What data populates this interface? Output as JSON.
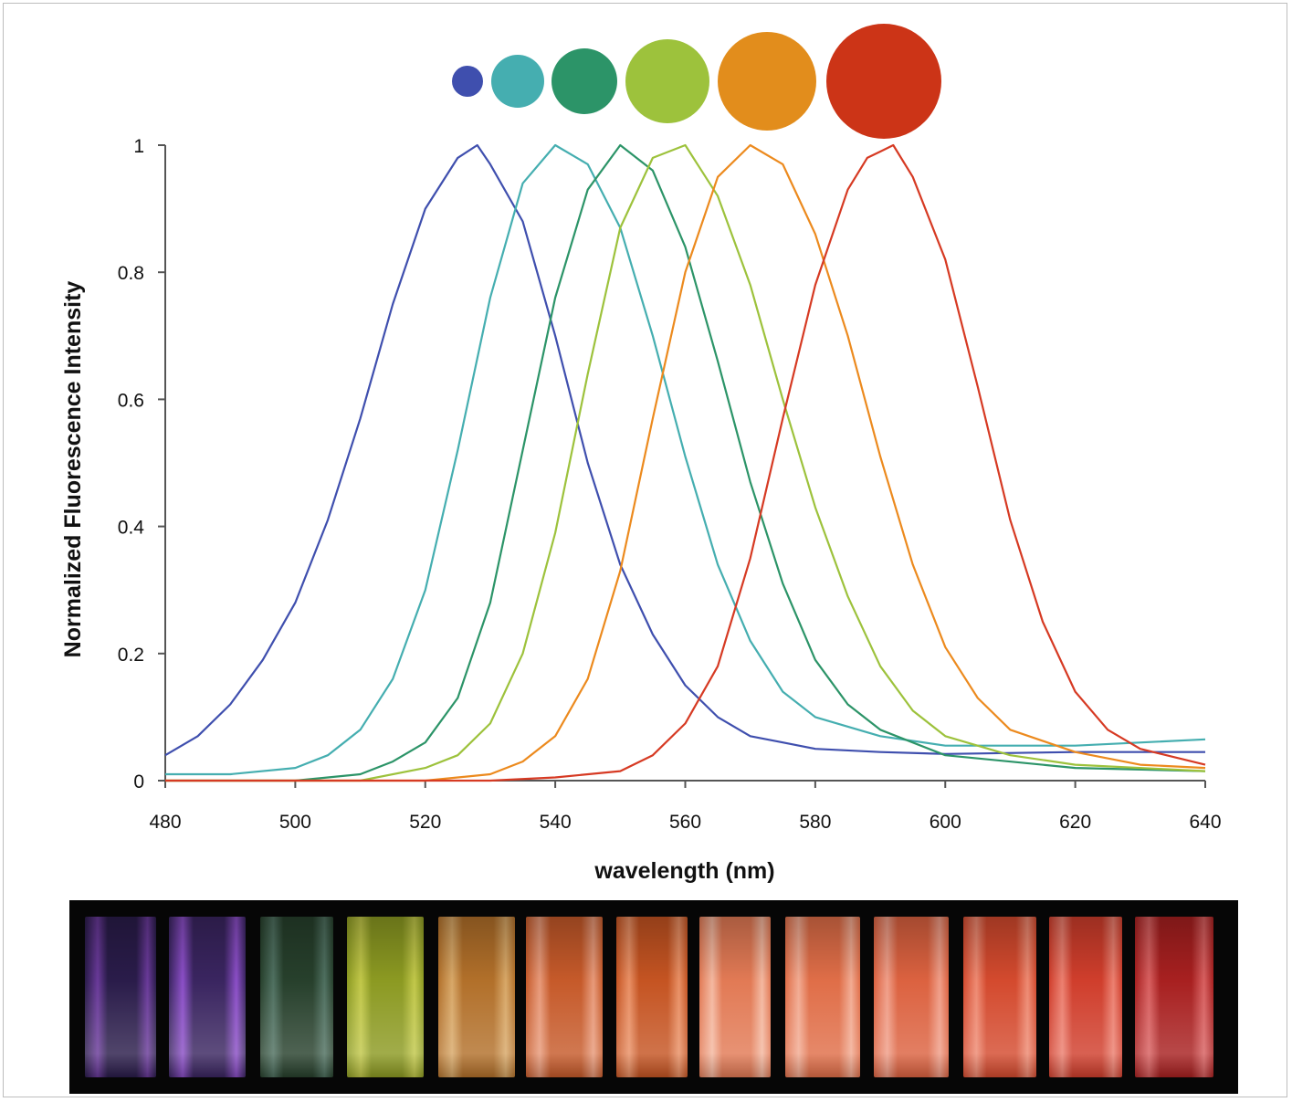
{
  "chart_data": {
    "type": "line",
    "title": "",
    "xlabel": "wavelength (nm)",
    "ylabel": "Normalized Fluorescence Intensity",
    "xlim": [
      480,
      640
    ],
    "ylim": [
      0,
      1
    ],
    "x_ticks": [
      "480",
      "500",
      "520",
      "540",
      "560",
      "580",
      "600",
      "620",
      "640"
    ],
    "y_ticks": [
      "0",
      "0.2",
      "0.4",
      "0.6",
      "0.8",
      "1"
    ],
    "grid": false,
    "series": [
      {
        "color": "#3f4fae",
        "x": [
          480,
          485,
          490,
          495,
          500,
          505,
          510,
          515,
          520,
          525,
          528,
          530,
          535,
          540,
          545,
          550,
          555,
          560,
          565,
          570,
          575,
          580,
          590,
          600,
          620,
          640
        ],
        "y": [
          0.04,
          0.07,
          0.12,
          0.19,
          0.28,
          0.41,
          0.57,
          0.75,
          0.9,
          0.98,
          1.0,
          0.97,
          0.88,
          0.7,
          0.5,
          0.34,
          0.23,
          0.15,
          0.1,
          0.07,
          0.06,
          0.05,
          0.045,
          0.042,
          0.045,
          0.045
        ]
      },
      {
        "color": "#45aeb0",
        "x": [
          480,
          490,
          500,
          505,
          510,
          515,
          520,
          525,
          530,
          535,
          540,
          545,
          550,
          555,
          560,
          565,
          570,
          575,
          580,
          590,
          600,
          620,
          640
        ],
        "y": [
          0.01,
          0.01,
          0.02,
          0.04,
          0.08,
          0.16,
          0.3,
          0.52,
          0.76,
          0.94,
          1.0,
          0.97,
          0.87,
          0.7,
          0.51,
          0.34,
          0.22,
          0.14,
          0.1,
          0.07,
          0.055,
          0.055,
          0.065
        ]
      },
      {
        "color": "#2c9468",
        "x": [
          480,
          500,
          510,
          515,
          520,
          525,
          530,
          535,
          540,
          545,
          550,
          555,
          560,
          565,
          570,
          575,
          580,
          585,
          590,
          600,
          620,
          640
        ],
        "y": [
          0.0,
          0.0,
          0.01,
          0.03,
          0.06,
          0.13,
          0.28,
          0.52,
          0.76,
          0.93,
          1.0,
          0.96,
          0.84,
          0.66,
          0.47,
          0.31,
          0.19,
          0.12,
          0.08,
          0.04,
          0.02,
          0.015
        ]
      },
      {
        "color": "#9dc23c",
        "x": [
          480,
          510,
          520,
          525,
          530,
          535,
          540,
          545,
          550,
          555,
          560,
          565,
          570,
          575,
          580,
          585,
          590,
          595,
          600,
          610,
          620,
          640
        ],
        "y": [
          0.0,
          0.0,
          0.02,
          0.04,
          0.09,
          0.2,
          0.39,
          0.64,
          0.87,
          0.98,
          1.0,
          0.92,
          0.78,
          0.6,
          0.43,
          0.29,
          0.18,
          0.11,
          0.07,
          0.04,
          0.025,
          0.015
        ]
      },
      {
        "color": "#ec8a1e",
        "x": [
          480,
          520,
          530,
          535,
          540,
          545,
          550,
          555,
          560,
          565,
          570,
          575,
          580,
          585,
          590,
          595,
          600,
          605,
          610,
          620,
          630,
          640
        ],
        "y": [
          0.0,
          0.0,
          0.01,
          0.03,
          0.07,
          0.16,
          0.33,
          0.57,
          0.8,
          0.95,
          1.0,
          0.97,
          0.86,
          0.7,
          0.51,
          0.34,
          0.21,
          0.13,
          0.08,
          0.045,
          0.025,
          0.02
        ]
      },
      {
        "color": "#d63a23",
        "x": [
          480,
          530,
          540,
          550,
          555,
          560,
          565,
          570,
          575,
          580,
          585,
          588,
          590,
          592,
          595,
          600,
          605,
          610,
          615,
          620,
          625,
          630,
          640
        ],
        "y": [
          0.0,
          0.0,
          0.005,
          0.015,
          0.04,
          0.09,
          0.18,
          0.35,
          0.57,
          0.78,
          0.93,
          0.98,
          0.99,
          1.0,
          0.95,
          0.82,
          0.62,
          0.41,
          0.25,
          0.14,
          0.08,
          0.05,
          0.025
        ]
      }
    ],
    "markers": [
      {
        "color": "#3f4fae",
        "size": 1
      },
      {
        "color": "#45aeb0",
        "size": 2
      },
      {
        "color": "#2c9468",
        "size": 3
      },
      {
        "color": "#9dc23c",
        "size": 4
      },
      {
        "color": "#e28d1c",
        "size": 5
      },
      {
        "color": "#cc3417",
        "size": 6
      }
    ]
  },
  "vial_strip": {
    "vials": [
      {
        "color": "#2a1c4a",
        "highlight": "#6a3a9a"
      },
      {
        "color": "#3a2560",
        "highlight": "#8c4fc8"
      },
      {
        "color": "#27402c",
        "highlight": "#4f7060"
      },
      {
        "color": "#8c9a22",
        "highlight": "#c2c84a"
      },
      {
        "color": "#b2702a",
        "highlight": "#d8a868"
      },
      {
        "color": "#c65a2a",
        "highlight": "#e89a7a"
      },
      {
        "color": "#c55422",
        "highlight": "#e99065"
      },
      {
        "color": "#e27a55",
        "highlight": "#f4b8a0"
      },
      {
        "color": "#e06e48",
        "highlight": "#f2ab92"
      },
      {
        "color": "#dc6240",
        "highlight": "#f09e88"
      },
      {
        "color": "#d44a2e",
        "highlight": "#ee8a72"
      },
      {
        "color": "#d03e2c",
        "highlight": "#ec8070"
      },
      {
        "color": "#a82020",
        "highlight": "#d86060"
      }
    ]
  }
}
